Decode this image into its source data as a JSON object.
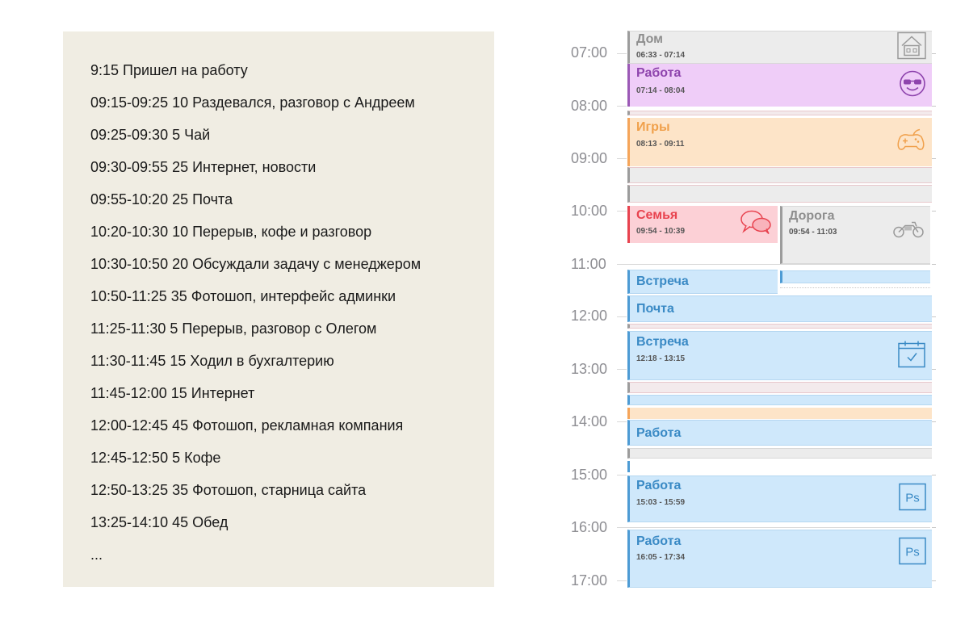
{
  "log": {
    "lines": [
      "9:15 Пришел на работу",
      "09:15-09:25 10 Раздевался, разговор с Андреем",
      "09:25-09:30 5 Чай",
      "09:30-09:55 25 Интернет, новости",
      "09:55-10:20 25 Почта",
      "10:20-10:30 10 Перерыв, кофе и разговор",
      "10:30-10:50 20 Обсуждали задачу с менеджером",
      "10:50-11:25 35 Фотошоп, интерфейс админки",
      "11:25-11:30 5 Перерыв, разговор с Олегом",
      "11:30-11:45 15 Ходил в бухгалтерию",
      "11:45-12:00 15 Интернет",
      "12:00-12:45 45 Фотошоп, рекламная компания",
      "12:45-12:50 5 Кофе",
      "12:50-13:25 35 Фотошоп, старница сайта",
      "13:25-14:10 45 Обед",
      "..."
    ]
  },
  "calendar": {
    "hours": [
      "07:00",
      "08:00",
      "09:00",
      "10:00",
      "11:00",
      "12:00",
      "13:00",
      "14:00",
      "15:00",
      "16:00",
      "17:00"
    ],
    "events": {
      "dom": {
        "title": "Дом",
        "time": "06:33 - 07:14",
        "icon": "house-icon"
      },
      "rabota1": {
        "title": "Работа",
        "time": "07:14 - 08:04",
        "icon": "sunglasses-smiley-icon"
      },
      "igry": {
        "title": "Игры",
        "time": "08:13 - 09:11",
        "icon": "gamepad-icon"
      },
      "semya": {
        "title": "Семья",
        "time": "09:54 - 10:39",
        "icon": "chat-bubbles-icon"
      },
      "doroga": {
        "title": "Дорога",
        "time": "09:54 - 11:03",
        "icon": "motorcycle-icon"
      },
      "vstrecha1": {
        "title": "Встреча"
      },
      "pochta": {
        "title": "Почта"
      },
      "vstrecha2": {
        "title": "Встреча",
        "time": "12:18 - 13:15",
        "icon": "calendar-check-icon"
      },
      "rabota2": {
        "title": "Работа"
      },
      "rabota3": {
        "title": "Работа",
        "time": "15:03 - 15:59",
        "icon": "photoshop-icon"
      },
      "rabota4": {
        "title": "Работа",
        "time": "16:05 - 17:34",
        "icon": "photoshop-icon"
      }
    },
    "ps_label": "Ps"
  },
  "colors": {
    "home": "#ececec",
    "work_purple": "#efcdf8",
    "games": "#fde4c8",
    "family": "#fcd0d6",
    "work_blue": "#cfe8fb",
    "log_bg": "#f0ede3"
  }
}
